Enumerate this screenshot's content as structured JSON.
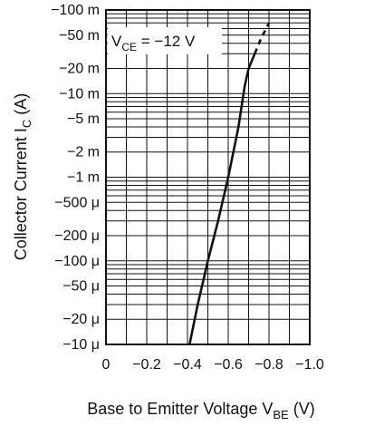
{
  "chart_data": {
    "type": "line",
    "annotation": {
      "main": "V",
      "sub": "CE",
      "suffix": " = −12 V"
    },
    "xlabel": {
      "main": "Base to Emitter Voltage  V",
      "sub": "BE",
      "suffix": "  (V)"
    },
    "ylabel": {
      "main": "Collector Current  I",
      "sub": "C",
      "suffix": "  (A)"
    },
    "x_scale": "linear",
    "y_scale": "log",
    "xlim": [
      0,
      -1.0
    ],
    "ylim": [
      -1e-05,
      -0.1
    ],
    "x_ticks": [
      {
        "value": 0,
        "label": "0"
      },
      {
        "value": -0.2,
        "label": "−0.2"
      },
      {
        "value": -0.4,
        "label": "−0.4"
      },
      {
        "value": -0.6,
        "label": "−0.6"
      },
      {
        "value": -0.8,
        "label": "−0.8"
      },
      {
        "value": -1.0,
        "label": "−1.0"
      }
    ],
    "y_ticks": [
      {
        "value": -1e-05,
        "label": "−10 μ"
      },
      {
        "value": -2e-05,
        "label": "−20 μ"
      },
      {
        "value": -5e-05,
        "label": "−50 μ"
      },
      {
        "value": -0.0001,
        "label": "−100 μ"
      },
      {
        "value": -0.0002,
        "label": "−200 μ"
      },
      {
        "value": -0.0005,
        "label": "−500 μ"
      },
      {
        "value": -0.001,
        "label": "−1 m"
      },
      {
        "value": -0.002,
        "label": "−2 m"
      },
      {
        "value": -0.005,
        "label": "−5 m"
      },
      {
        "value": -0.01,
        "label": "−10 m"
      },
      {
        "value": -0.02,
        "label": "−20 m"
      },
      {
        "value": -0.05,
        "label": "−50 m"
      },
      {
        "value": -0.1,
        "label": "−100 m"
      }
    ],
    "grid": true,
    "series": [
      {
        "style": "solid",
        "points": [
          {
            "x": -0.41,
            "y": -1e-05
          },
          {
            "x": -0.45,
            "y": -3e-05
          },
          {
            "x": -0.5,
            "y": -0.0001
          },
          {
            "x": -0.55,
            "y": -0.0003
          },
          {
            "x": -0.6,
            "y": -0.001
          },
          {
            "x": -0.65,
            "y": -0.004
          },
          {
            "x": -0.68,
            "y": -0.012
          },
          {
            "x": -0.7,
            "y": -0.02
          },
          {
            "x": -0.73,
            "y": -0.03
          }
        ]
      },
      {
        "style": "dashed",
        "points": [
          {
            "x": -0.73,
            "y": -0.03
          },
          {
            "x": -0.76,
            "y": -0.045
          },
          {
            "x": -0.8,
            "y": -0.07
          }
        ]
      }
    ]
  }
}
